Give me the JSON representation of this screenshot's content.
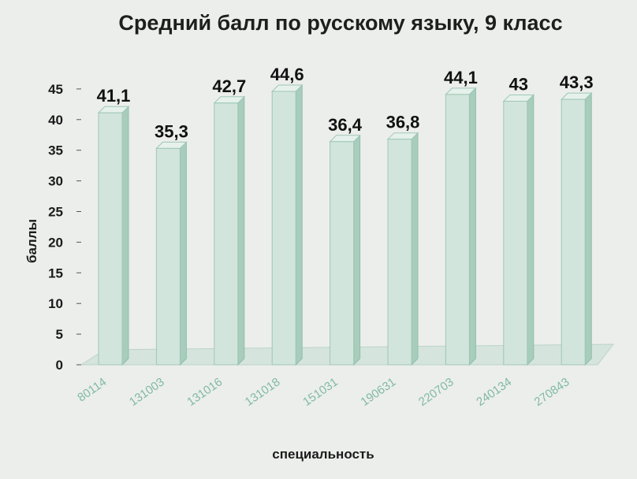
{
  "chart_data": {
    "type": "bar",
    "title": "Средний балл по русскому языку, 9 класс",
    "xlabel": "специальность",
    "ylabel": "баллы",
    "categories": [
      "80114",
      "131003",
      "131016",
      "131018",
      "151031",
      "190631",
      "220703",
      "240134",
      "270843"
    ],
    "values": [
      41.1,
      35.3,
      42.7,
      44.6,
      36.4,
      36.8,
      44.1,
      43,
      43.3
    ],
    "data_labels": [
      "41,1",
      "35,3",
      "42,7",
      "44,6",
      "36,4",
      "36,8",
      "44,1",
      "43",
      "43,3"
    ],
    "y_ticks": [
      "0",
      "5",
      "10",
      "15",
      "20",
      "25",
      "30",
      "35",
      "40",
      "45"
    ],
    "ylim": [
      0,
      45
    ],
    "grid": false,
    "legend": "none",
    "style": "3d-column"
  },
  "colors": {
    "background": "#eceeec",
    "bar_front": "#d2e5dc",
    "bar_side": "#a8cdbc",
    "bar_top": "#e6f1ec",
    "floor": "#d5e4dd",
    "tick_label": "#7fb9a6"
  }
}
